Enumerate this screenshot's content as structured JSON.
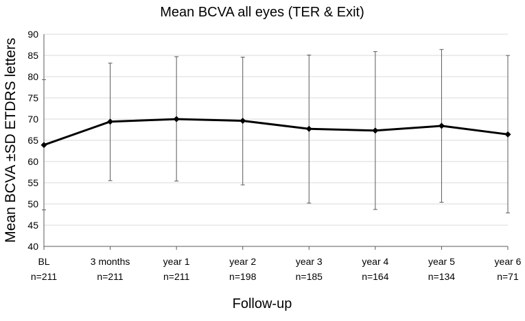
{
  "chart_data": {
    "type": "line",
    "title": "Mean BCVA all eyes (TER & Exit)",
    "xlabel": "Follow-up",
    "ylabel": "Mean BCVA  ±SD ETDRS letters",
    "ylim": [
      40,
      90
    ],
    "y_ticks": [
      40,
      45,
      50,
      55,
      60,
      65,
      70,
      75,
      80,
      85,
      90
    ],
    "grid": true,
    "categories": [
      "BL",
      "3 months",
      "year 1",
      "year 2",
      "year 3",
      "year 4",
      "year 5",
      "year 6"
    ],
    "n_labels": [
      "n=211",
      "n=211",
      "n=211",
      "n=198",
      "n=185",
      "n=164",
      "n=134",
      "n=71"
    ],
    "series": [
      {
        "name": "Mean BCVA",
        "values": [
          63.9,
          69.4,
          70.0,
          69.6,
          67.7,
          67.3,
          68.4,
          66.4
        ],
        "sd_lower": [
          48.6,
          55.5,
          55.4,
          54.5,
          50.2,
          48.7,
          50.4,
          47.9
        ],
        "sd_upper": [
          79.3,
          83.2,
          84.7,
          84.6,
          85.1,
          85.9,
          86.4,
          85.0
        ]
      }
    ],
    "colors": {
      "line": "#000000",
      "error_bar": "#595959",
      "grid": "#d9d9d9",
      "axis": "#595959",
      "text": "#000000"
    }
  }
}
